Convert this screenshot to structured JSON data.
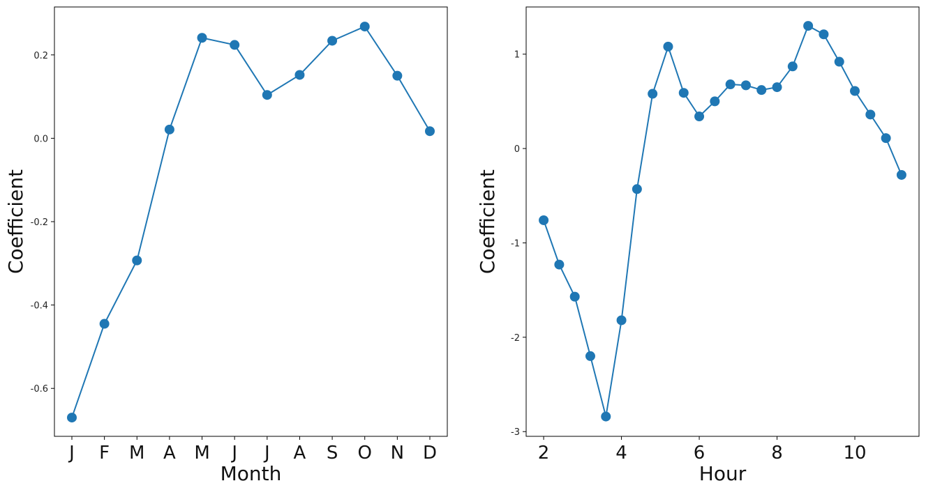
{
  "chart_data": [
    {
      "type": "line",
      "xlabel": "Month",
      "ylabel": "Coefficient",
      "categories": [
        "J",
        "F",
        "M",
        "A",
        "M",
        "J",
        "J",
        "A",
        "S",
        "O",
        "N",
        "D"
      ],
      "values": [
        -0.67,
        -0.445,
        -0.293,
        0.021,
        0.241,
        0.224,
        0.104,
        0.152,
        0.234,
        0.268,
        0.15,
        0.017
      ],
      "ylim": [
        -0.715,
        0.315
      ],
      "yticks": [
        0.2,
        0.0,
        -0.2,
        -0.4,
        -0.6
      ],
      "ytick_labels": [
        "0.2",
        "0.0",
        "-0.2",
        "-0.4",
        "-0.6"
      ],
      "color": "#1f77b4",
      "marker": "circle",
      "grid": false
    },
    {
      "type": "line",
      "xlabel": "Hour",
      "ylabel": "Coefficient",
      "x": [
        2.0,
        2.4,
        2.8,
        3.2,
        3.6,
        4.0,
        4.4,
        4.8,
        5.2,
        5.6,
        6.0,
        6.4,
        6.8,
        7.2,
        7.6,
        8.0,
        8.4,
        8.8,
        9.2,
        9.6,
        10.0,
        10.4,
        10.8,
        11.2
      ],
      "values": [
        -0.76,
        -1.23,
        -1.57,
        -2.2,
        -2.84,
        -1.82,
        -0.43,
        0.58,
        1.08,
        0.59,
        0.34,
        0.5,
        0.68,
        0.67,
        0.62,
        0.65,
        0.87,
        1.3,
        1.21,
        0.92,
        0.61,
        0.36,
        0.11,
        -0.28
      ],
      "xlim": [
        1.55,
        11.65
      ],
      "ylim": [
        -3.05,
        1.5
      ],
      "xticks": [
        2,
        4,
        6,
        8,
        10
      ],
      "xtick_labels": [
        "2",
        "4",
        "6",
        "8",
        "10"
      ],
      "yticks": [
        1,
        0,
        -1,
        -2,
        -3
      ],
      "ytick_labels": [
        "1",
        "0",
        "-1",
        "-2",
        "-3"
      ],
      "color": "#1f77b4",
      "marker": "circle",
      "grid": false
    }
  ]
}
